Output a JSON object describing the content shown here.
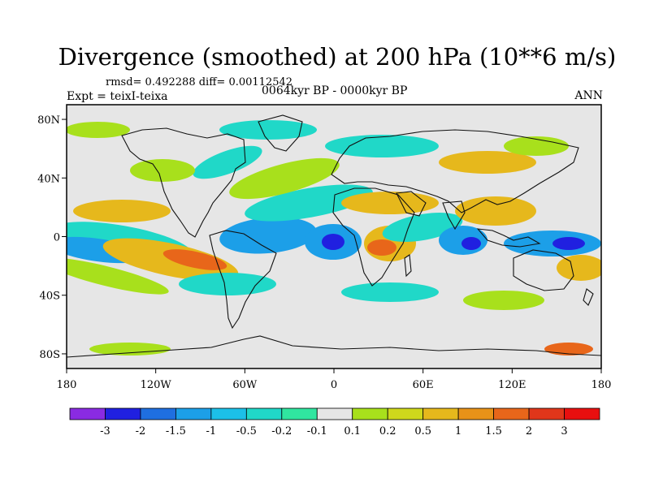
{
  "title": "Divergence (smoothed) at 200 hPa (10**6 m/s)",
  "stats": "rmsd= 0.492288 diff= 0.00112542",
  "experiment": "Expt = teixI-teixa",
  "period": "0064kyr BP - 0000kyr BP",
  "season": "ANN",
  "map": {
    "projection": "cylindrical equidistant",
    "lat_ticks": [
      {
        "lat": 80,
        "label": "80N"
      },
      {
        "lat": 40,
        "label": "40N"
      },
      {
        "lat": 0,
        "label": "0"
      },
      {
        "lat": -40,
        "label": "40S"
      },
      {
        "lat": -80,
        "label": "80S"
      }
    ],
    "lon_ticks": [
      {
        "lon": -180,
        "label": "180"
      },
      {
        "lon": -120,
        "label": "120W"
      },
      {
        "lon": -60,
        "label": "60W"
      },
      {
        "lon": 0,
        "label": "0"
      },
      {
        "lon": 60,
        "label": "60E"
      },
      {
        "lon": 120,
        "label": "120E"
      },
      {
        "lon": 180,
        "label": "180"
      }
    ]
  },
  "colorbar": {
    "labels": [
      "-3",
      "-2",
      "-1.5",
      "-1",
      "-0.5",
      "-0.2",
      "-0.1",
      "0.1",
      "0.2",
      "0.5",
      "1",
      "1.5",
      "2",
      "3"
    ],
    "colors": [
      "#8a2be2",
      "#2020e0",
      "#1f6fe0",
      "#1c9fe8",
      "#1cc0e8",
      "#20d8c8",
      "#30e6a0",
      "#e6e6e6",
      "#a8e01c",
      "#cfd81c",
      "#e6b81c",
      "#e89218",
      "#e8661a",
      "#e0361a",
      "#e80f0f"
    ]
  },
  "field_colors": {
    "strong_neg": "#2020e0",
    "neg": "#1c9fe8",
    "weak_neg": "#20d8c8",
    "neutral": "#e6e6e6",
    "weak_pos": "#a8e01c",
    "pos": "#e6b81c",
    "strong_pos": "#e8661a"
  }
}
